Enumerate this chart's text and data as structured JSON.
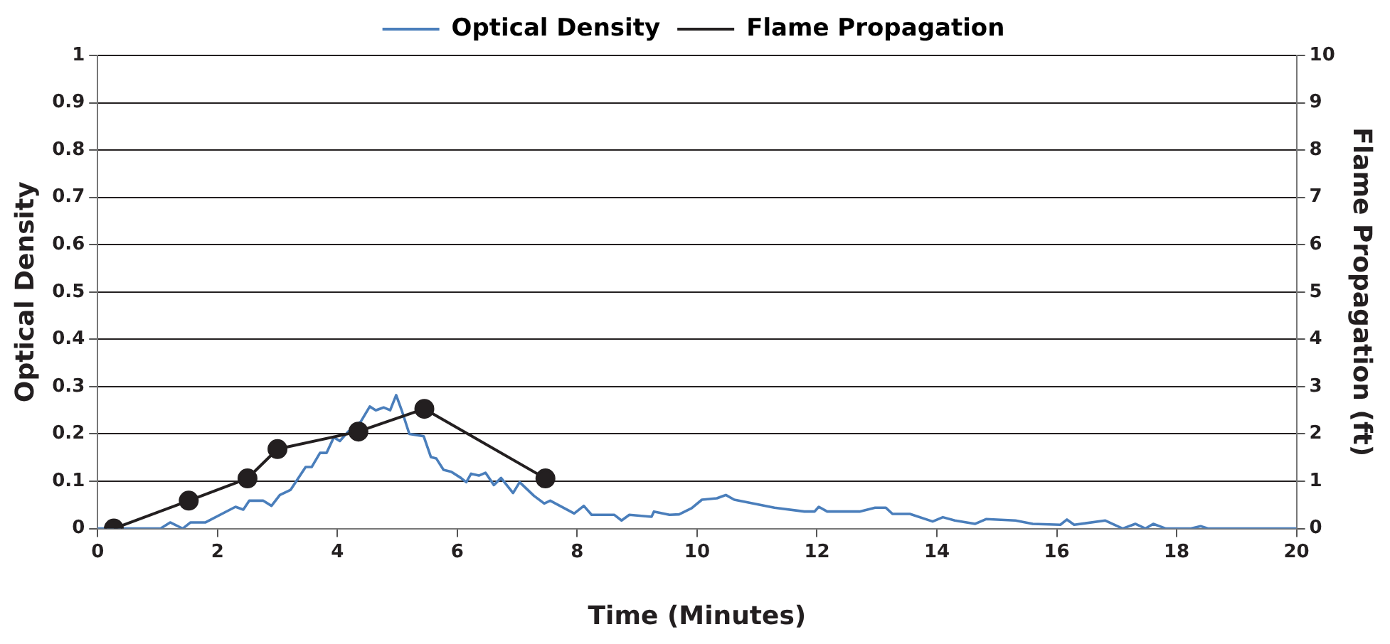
{
  "chart_data": {
    "type": "line",
    "xlabel": "Time (Minutes)",
    "ylabel": "Optical Density",
    "y2label": "Flame Propagation (ft)",
    "xlim": [
      0,
      20
    ],
    "xticks": [
      0,
      2,
      4,
      6,
      8,
      10,
      12,
      14,
      16,
      18,
      20
    ],
    "ylim": [
      0,
      1
    ],
    "yticks": [
      0,
      0.1,
      0.2,
      0.3,
      0.4,
      0.5,
      0.6,
      0.7,
      0.8,
      0.9,
      1
    ],
    "y2lim": [
      0,
      10
    ],
    "y2ticks": [
      0,
      1,
      2,
      3,
      4,
      5,
      6,
      7,
      8,
      9,
      10
    ],
    "grid": "y",
    "legend": "top",
    "series": [
      {
        "name": "Optical Density",
        "color": "#4a7ebb",
        "marker": "none",
        "x": [
          0,
          1.05,
          1.21,
          1.42,
          1.55,
          1.8,
          2.3,
          2.43,
          2.53,
          2.76,
          2.9,
          3.04,
          3.22,
          3.47,
          3.57,
          3.71,
          3.82,
          3.94,
          4.04,
          4.18,
          4.39,
          4.54,
          4.64,
          4.77,
          4.88,
          4.98,
          5.08,
          5.2,
          5.44,
          5.56,
          5.65,
          5.77,
          5.9,
          6.06,
          6.15,
          6.23,
          6.36,
          6.47,
          6.61,
          6.73,
          6.93,
          7.04,
          7.28,
          7.45,
          7.55,
          7.95,
          8.11,
          8.24,
          8.62,
          8.74,
          8.87,
          9.24,
          9.28,
          9.54,
          9.7,
          9.91,
          10.08,
          10.33,
          10.48,
          10.62,
          11.29,
          11.79,
          11.96,
          12.03,
          12.17,
          12.71,
          12.97,
          13.15,
          13.26,
          13.55,
          13.93,
          14.1,
          14.3,
          14.64,
          14.82,
          15.31,
          15.6,
          16.06,
          16.17,
          16.29,
          16.81,
          17.1,
          17.31,
          17.48,
          17.61,
          17.82,
          18.24,
          18.4,
          18.53,
          20
        ],
        "values": [
          0,
          0,
          0.013,
          0,
          0.013,
          0.013,
          0.046,
          0.04,
          0.059,
          0.059,
          0.048,
          0.071,
          0.082,
          0.13,
          0.13,
          0.16,
          0.16,
          0.193,
          0.185,
          0.205,
          0.226,
          0.258,
          0.25,
          0.256,
          0.25,
          0.282,
          0.247,
          0.2,
          0.195,
          0.151,
          0.148,
          0.124,
          0.12,
          0.107,
          0.098,
          0.116,
          0.112,
          0.118,
          0.092,
          0.107,
          0.075,
          0.098,
          0.069,
          0.053,
          0.059,
          0.032,
          0.048,
          0.029,
          0.029,
          0.017,
          0.029,
          0.025,
          0.036,
          0.029,
          0.03,
          0.043,
          0.061,
          0.064,
          0.071,
          0.061,
          0.044,
          0.036,
          0.036,
          0.046,
          0.036,
          0.036,
          0.044,
          0.044,
          0.031,
          0.031,
          0.015,
          0.024,
          0.017,
          0.01,
          0.02,
          0.017,
          0.01,
          0.008,
          0.019,
          0.008,
          0.017,
          0,
          0.01,
          0,
          0.01,
          0,
          0,
          0.005,
          0,
          0
        ]
      },
      {
        "name": "Flame Propagation",
        "color": "#231f20",
        "marker": "circle",
        "axis": "y2",
        "x": [
          0.27,
          1.52,
          2.5,
          3.0,
          4.35,
          5.45,
          7.47
        ],
        "values": [
          0,
          0.59,
          1.06,
          1.68,
          2.05,
          2.53,
          1.06
        ]
      }
    ]
  }
}
